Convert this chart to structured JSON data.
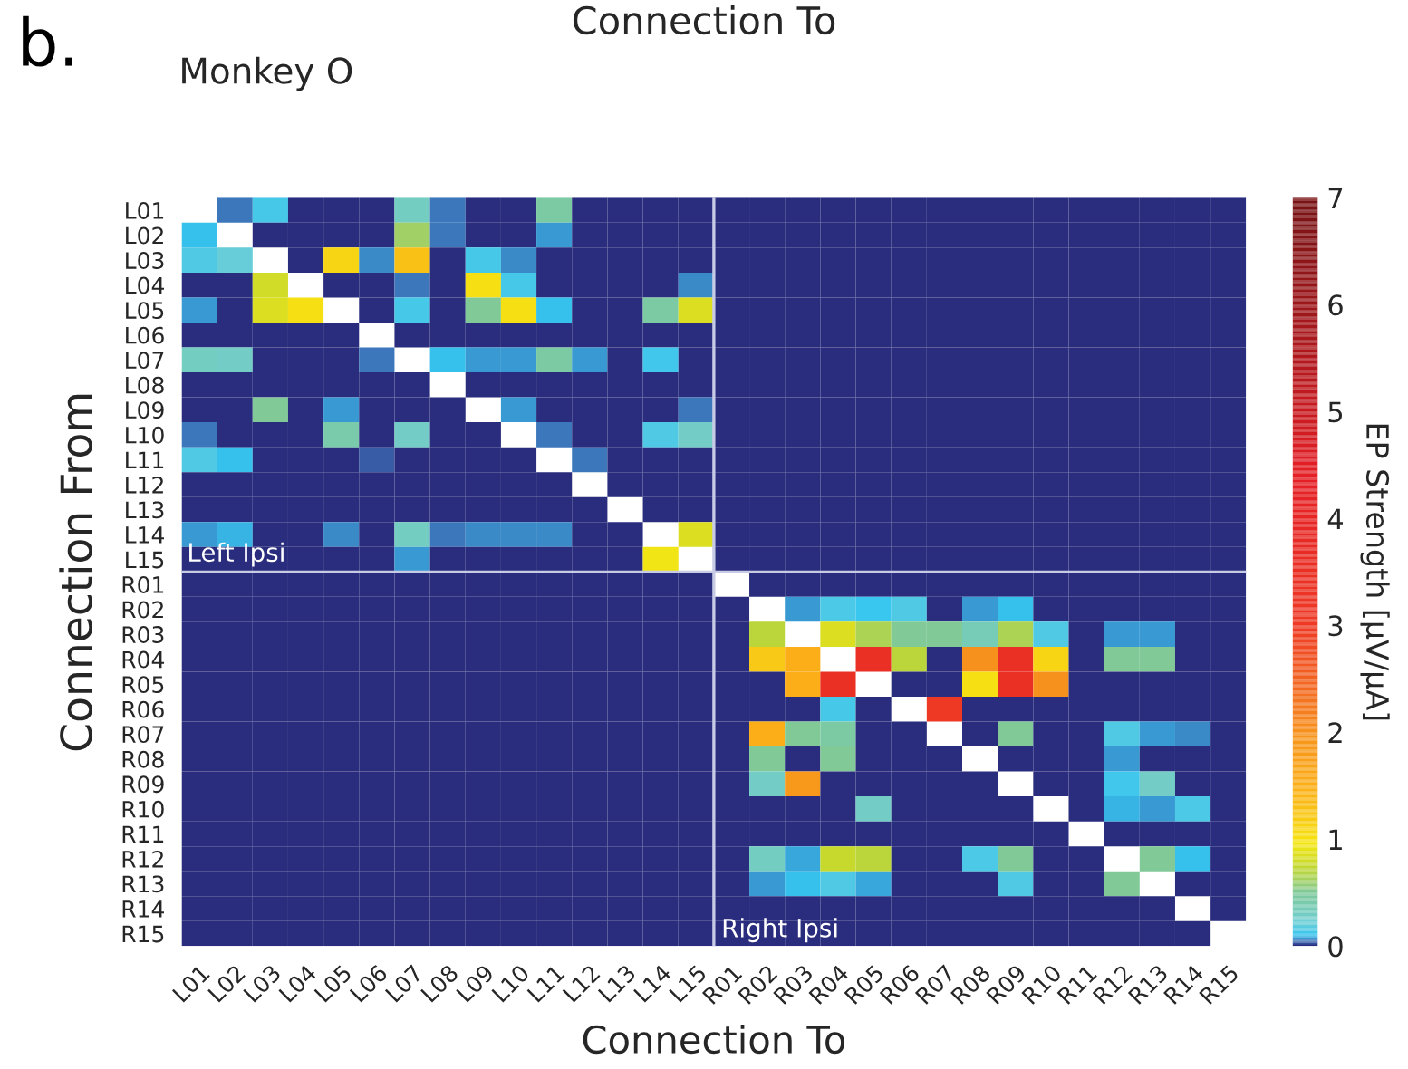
{
  "chart_data": {
    "type": "heatmap",
    "title": "Connection To",
    "subtitle": "Monkey O",
    "xlabel": "Connection To",
    "ylabel": "Connection From",
    "clabel": "EP Strength [µV/µA]",
    "annotations": [
      "b.",
      "Left Ipsi",
      "Right Ipsi"
    ],
    "categories": [
      "L01",
      "L02",
      "L03",
      "L04",
      "L05",
      "L06",
      "L07",
      "L08",
      "L09",
      "L10",
      "L11",
      "L12",
      "L13",
      "L14",
      "L15",
      "R01",
      "R02",
      "R03",
      "R04",
      "R05",
      "R06",
      "R07",
      "R08",
      "R09",
      "R10",
      "R11",
      "R12",
      "R13",
      "R14",
      "R15"
    ],
    "y_categories": [
      "L01",
      "L02",
      "L03",
      "L04",
      "L05",
      "L06",
      "L07",
      "L08",
      "L09",
      "L10",
      "L11",
      "L12",
      "L13",
      "L14",
      "L15",
      "R01",
      "R02",
      "R03",
      "R04",
      "R05",
      "R06",
      "R07",
      "R08",
      "R09",
      "R10",
      "R11",
      "R12",
      "R13",
      "R14",
      "R15"
    ],
    "cells": [
      [
        null,
        0.05,
        0.13,
        0,
        0,
        0,
        0.3,
        0.05,
        0,
        0,
        0.45,
        0,
        0,
        0,
        0,
        0,
        0,
        0,
        0,
        0,
        0,
        0,
        0,
        0,
        0,
        0,
        0,
        0,
        0,
        0
      ],
      [
        0.1,
        null,
        0,
        0,
        0,
        0,
        0.6,
        0.05,
        0,
        0,
        0.07,
        0,
        0,
        0,
        0,
        0,
        0,
        0,
        0,
        0,
        0,
        0,
        0,
        0,
        0,
        0,
        0,
        0,
        0,
        0
      ],
      [
        0.15,
        0.2,
        null,
        0,
        1.1,
        0.06,
        1.3,
        0,
        0.13,
        0.06,
        0,
        0,
        0,
        0,
        0,
        0,
        0,
        0,
        0,
        0,
        0,
        0,
        0,
        0,
        0,
        0,
        0,
        0,
        0,
        0
      ],
      [
        0,
        0,
        0.8,
        null,
        0,
        0,
        0.05,
        0,
        1,
        0.13,
        0,
        0,
        0,
        0,
        0.06,
        0,
        0,
        0,
        0,
        0,
        0,
        0,
        0,
        0,
        0,
        0,
        0,
        0,
        0,
        0
      ],
      [
        0.07,
        0,
        0.85,
        1,
        null,
        0,
        0.13,
        0,
        0.5,
        1,
        0.1,
        0,
        0,
        0.45,
        0.85,
        0,
        0,
        0,
        0,
        0,
        0,
        0,
        0,
        0,
        0,
        0,
        0,
        0,
        0,
        0
      ],
      [
        0,
        0,
        0,
        0,
        0,
        null,
        0,
        0,
        0,
        0,
        0,
        0,
        0,
        0,
        0,
        0,
        0,
        0,
        0,
        0,
        0,
        0,
        0,
        0,
        0,
        0,
        0,
        0,
        0,
        0
      ],
      [
        0.3,
        0.28,
        0,
        0,
        0,
        0.05,
        null,
        0.1,
        0.07,
        0.07,
        0.45,
        0.07,
        0,
        0.12,
        0,
        0,
        0,
        0,
        0,
        0,
        0,
        0,
        0,
        0,
        0,
        0,
        0,
        0,
        0,
        0
      ],
      [
        0,
        0,
        0,
        0,
        0,
        0,
        0,
        null,
        0,
        0,
        0,
        0,
        0,
        0,
        0,
        0,
        0,
        0,
        0,
        0,
        0,
        0,
        0,
        0,
        0,
        0,
        0,
        0,
        0,
        0
      ],
      [
        0,
        0,
        0.5,
        0,
        0.07,
        0,
        0,
        0,
        null,
        0.07,
        0,
        0,
        0,
        0,
        0.05,
        0,
        0,
        0,
        0,
        0,
        0,
        0,
        0,
        0,
        0,
        0,
        0,
        0,
        0,
        0
      ],
      [
        0.05,
        0,
        0,
        0,
        0.4,
        0,
        0.28,
        0,
        0,
        null,
        0.05,
        0,
        0,
        0.15,
        0.28,
        0,
        0,
        0,
        0,
        0,
        0,
        0,
        0,
        0,
        0,
        0,
        0,
        0,
        0,
        0
      ],
      [
        0.15,
        0.1,
        0,
        0,
        0,
        0.03,
        0,
        0,
        0,
        0,
        null,
        0.05,
        0,
        0,
        0,
        0,
        0,
        0,
        0,
        0,
        0,
        0,
        0,
        0,
        0,
        0,
        0,
        0,
        0,
        0
      ],
      [
        0,
        0,
        0,
        0,
        0,
        0,
        0,
        0,
        0,
        0,
        0,
        null,
        0,
        0,
        0,
        0,
        0,
        0,
        0,
        0,
        0,
        0,
        0,
        0,
        0,
        0,
        0,
        0,
        0,
        0
      ],
      [
        0,
        0,
        0,
        0,
        0,
        0,
        0,
        0,
        0,
        0,
        0,
        0,
        null,
        0,
        0,
        0,
        0,
        0,
        0,
        0,
        0,
        0,
        0,
        0,
        0,
        0,
        0,
        0,
        0,
        0
      ],
      [
        0.07,
        0.09,
        0,
        0,
        0.06,
        0,
        0.3,
        0.05,
        0.06,
        0.06,
        0.06,
        0,
        0,
        null,
        0.85,
        0,
        0,
        0,
        0,
        0,
        0,
        0,
        0,
        0,
        0,
        0,
        0,
        0,
        0,
        0
      ],
      [
        0,
        0,
        0,
        0,
        0,
        0,
        0.07,
        0,
        0,
        0,
        0,
        0,
        0,
        0.95,
        null,
        0,
        0,
        0,
        0,
        0,
        0,
        0,
        0,
        0,
        0,
        0,
        0,
        0,
        0,
        0
      ],
      [
        0,
        0,
        0,
        0,
        0,
        0,
        0,
        0,
        0,
        0,
        0,
        0,
        0,
        0,
        0,
        null,
        0,
        0,
        0,
        0,
        0,
        0,
        0,
        0,
        0,
        0,
        0,
        0,
        0,
        0
      ],
      [
        0,
        0,
        0,
        0,
        0,
        0,
        0,
        0,
        0,
        0,
        0,
        0,
        0,
        0,
        0,
        0,
        null,
        0.07,
        0.14,
        0.11,
        0.15,
        0,
        0.07,
        0.1,
        0,
        0,
        0,
        0,
        0,
        0
      ],
      [
        0,
        0,
        0,
        0,
        0,
        0,
        0,
        0,
        0,
        0,
        0,
        0,
        0,
        0,
        0,
        0,
        0.7,
        null,
        0.85,
        0.65,
        0.5,
        0.5,
        0.35,
        0.65,
        0.15,
        0,
        0.07,
        0.07,
        0,
        0
      ],
      [
        0,
        0,
        0,
        0,
        0,
        0,
        0,
        0,
        0,
        0,
        0,
        0,
        0,
        0,
        0,
        0,
        1.2,
        1.5,
        null,
        3.5,
        0.7,
        0,
        2,
        3.5,
        1.1,
        0,
        0.5,
        0.5,
        0,
        0
      ],
      [
        0,
        0,
        0,
        0,
        0,
        0,
        0,
        0,
        0,
        0,
        0,
        0,
        0,
        0,
        0,
        0,
        0,
        1.5,
        3.5,
        null,
        0,
        0,
        1,
        3.5,
        2,
        0,
        0,
        0,
        0,
        0
      ],
      [
        0,
        0,
        0,
        0,
        0,
        0,
        0,
        0,
        0,
        0,
        0,
        0,
        0,
        0,
        0,
        0,
        0,
        0,
        0.13,
        0,
        null,
        3,
        0,
        0,
        0,
        0,
        0,
        0,
        0,
        0
      ],
      [
        0,
        0,
        0,
        0,
        0,
        0,
        0,
        0,
        0,
        0,
        0,
        0,
        0,
        0,
        0,
        0,
        1.5,
        0.5,
        0.45,
        0,
        0,
        null,
        0,
        0.5,
        0,
        0,
        0.15,
        0.07,
        0.06,
        0
      ],
      [
        0,
        0,
        0,
        0,
        0,
        0,
        0,
        0,
        0,
        0,
        0,
        0,
        0,
        0,
        0,
        0,
        0.5,
        0,
        0.5,
        0,
        0,
        0,
        null,
        0,
        0,
        0,
        0.07,
        0,
        0,
        0
      ],
      [
        0,
        0,
        0,
        0,
        0,
        0,
        0,
        0,
        0,
        0,
        0,
        0,
        0,
        0,
        0,
        0,
        0.28,
        1.9,
        0,
        0,
        0,
        0,
        0,
        null,
        0,
        0,
        0.12,
        0.28,
        0,
        0
      ],
      [
        0,
        0,
        0,
        0,
        0,
        0,
        0,
        0,
        0,
        0,
        0,
        0,
        0,
        0,
        0,
        0,
        0,
        0,
        0,
        0.28,
        0,
        0,
        0,
        0,
        null,
        0,
        0.09,
        0.07,
        0.14,
        0
      ],
      [
        0,
        0,
        0,
        0,
        0,
        0,
        0,
        0,
        0,
        0,
        0,
        0,
        0,
        0,
        0,
        0,
        0,
        0,
        0,
        0,
        0,
        0,
        0,
        0,
        0,
        null,
        0,
        0,
        0,
        0
      ],
      [
        0,
        0,
        0,
        0,
        0,
        0,
        0,
        0,
        0,
        0,
        0,
        0,
        0,
        0,
        0,
        0,
        0.3,
        0.08,
        0.75,
        0.7,
        0,
        0,
        0.14,
        0.5,
        0,
        0,
        null,
        0.5,
        0.1,
        0
      ],
      [
        0,
        0,
        0,
        0,
        0,
        0,
        0,
        0,
        0,
        0,
        0,
        0,
        0,
        0,
        0,
        0,
        0.07,
        0.1,
        0.15,
        0.08,
        0,
        0,
        0,
        0.15,
        0,
        0,
        0.5,
        null,
        0,
        0
      ],
      [
        0,
        0,
        0,
        0,
        0,
        0,
        0,
        0,
        0,
        0,
        0,
        0,
        0,
        0,
        0,
        0,
        0,
        0,
        0,
        0,
        0,
        0,
        0,
        0,
        0,
        0,
        0,
        0,
        null,
        0
      ],
      [
        0,
        0,
        0,
        0,
        0,
        0,
        0,
        0,
        0,
        0,
        0,
        0,
        0,
        0,
        0,
        0,
        0,
        0,
        0,
        0,
        0,
        0,
        0,
        0,
        0,
        0,
        0,
        0,
        0,
        null
      ]
    ],
    "clim": [
      0,
      7
    ],
    "cticks": [
      0,
      1,
      2,
      3,
      4,
      5,
      6,
      7
    ]
  }
}
